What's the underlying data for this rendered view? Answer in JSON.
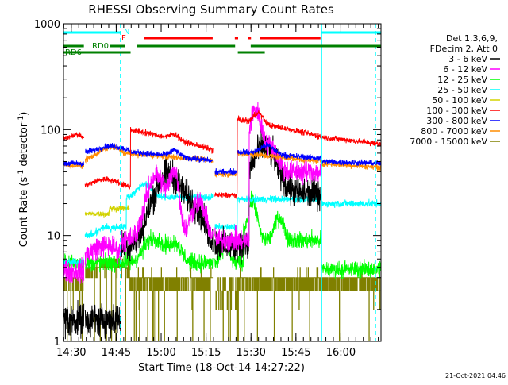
{
  "chart_data": {
    "type": "line",
    "title": "RHESSI Observing Summary Count Rates",
    "xlabel": "Start Time (18-Oct-14 14:27:22)",
    "ylabel_main": "Count Rate (s",
    "ylabel_sup1": "-1",
    "ylabel_mid": " detector",
    "ylabel_sup2": "-1",
    "ylabel_end": ")",
    "y_scale": "log",
    "ylim": [
      1,
      1000
    ],
    "xlim_minutes": [
      0,
      106
    ],
    "y_ticks": [
      {
        "value": 1,
        "label": "1"
      },
      {
        "value": 10,
        "label": "10"
      },
      {
        "value": 100,
        "label": "100"
      },
      {
        "value": 1000,
        "label": "1000"
      }
    ],
    "x_ticks": [
      {
        "minute": 2.6,
        "label": "14:30"
      },
      {
        "minute": 17.6,
        "label": "14:45"
      },
      {
        "minute": 32.6,
        "label": "15:00"
      },
      {
        "minute": 47.6,
        "label": "15:15"
      },
      {
        "minute": 62.6,
        "label": "15:30"
      },
      {
        "minute": 77.6,
        "label": "15:45"
      },
      {
        "minute": 92.6,
        "label": "16:00"
      }
    ],
    "x_minor_step": 2.5,
    "legend_header": [
      "Det 1,3,6,9,",
      "FDecim 2, Att 0"
    ],
    "legend_position": "right",
    "series": [
      {
        "name": "3 - 6 keV",
        "color": "#000000",
        "key": "3-6"
      },
      {
        "name": "6 - 12 keV",
        "color": "#ff00ff",
        "key": "6-12"
      },
      {
        "name": "12 - 25 keV",
        "color": "#00ff00",
        "key": "12-25"
      },
      {
        "name": "25 - 50 keV",
        "color": "#00ffff",
        "key": "25-50"
      },
      {
        "name": "50 - 100 keV",
        "color": "#d2d200",
        "key": "50-100"
      },
      {
        "name": "100 - 300 keV",
        "color": "#ff0000",
        "key": "100-300"
      },
      {
        "name": "300 - 800 keV",
        "color": "#0000ff",
        "key": "300-800"
      },
      {
        "name": "800 - 7000 keV",
        "color": "#ff8c00",
        "key": "800-7000"
      },
      {
        "name": "7000 - 15000 keV",
        "color": "#808000",
        "key": "7000-15000"
      }
    ],
    "flag_bars": [
      {
        "label": "N",
        "color": "#00ffff",
        "level": 0,
        "intervals": [
          [
            0,
            19.2
          ],
          [
            86.2,
            106
          ]
        ]
      },
      {
        "label": "F",
        "color": "#ff0000",
        "level": 1,
        "intervals": [
          [
            27.0,
            49.8
          ],
          [
            57.2,
            58.3
          ],
          [
            61.6,
            62.6
          ],
          [
            65.5,
            85.8
          ]
        ]
      },
      {
        "label": "RD0",
        "color": "#008000",
        "level": 2,
        "intervals": [
          [
            0,
            6.8
          ],
          [
            15.5,
            20.5
          ],
          [
            24.6,
            57.3
          ],
          [
            62.5,
            106
          ]
        ]
      },
      {
        "label": "RD6",
        "color": "#008000",
        "level": 3,
        "intervals": [
          [
            0,
            22.4
          ],
          [
            58.2,
            67.2
          ]
        ]
      }
    ],
    "vertical_lines": [
      {
        "minute": 19.0,
        "color": "#00ffff",
        "style": "dashed"
      },
      {
        "minute": 86.2,
        "color": "#00ffff",
        "style": "solid"
      },
      {
        "minute": 104.2,
        "color": "#00ffff",
        "style": "dashed"
      }
    ],
    "timestamp": "21-Oct-2021 04:46"
  }
}
